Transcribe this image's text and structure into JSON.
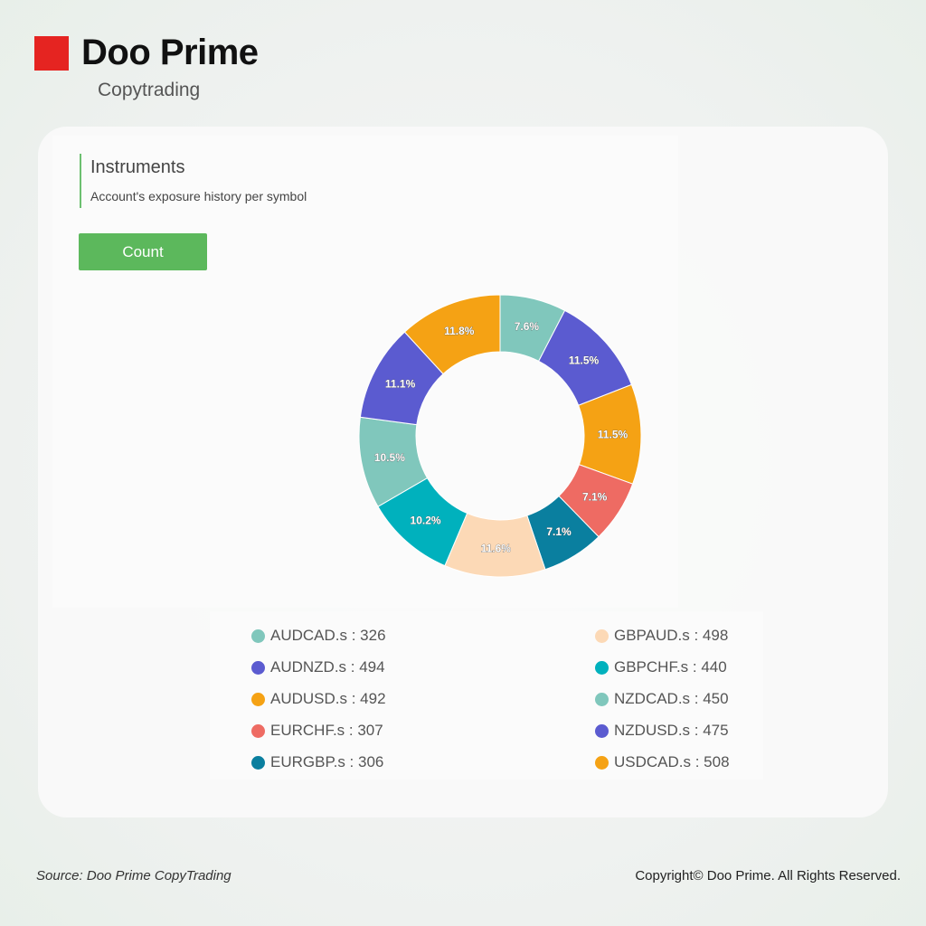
{
  "brand": {
    "name": "Doo Prime",
    "sub": "Copytrading",
    "color": "#e52421"
  },
  "header": {
    "title": "Instruments",
    "subtitle": "Account's exposure history per symbol"
  },
  "button": {
    "label": "Count",
    "color": "#5cb85c"
  },
  "chart_data": {
    "type": "pie",
    "donut": true,
    "categories": [
      "AUDCAD.s",
      "AUDNZD.s",
      "AUDUSD.s",
      "EURCHF.s",
      "EURGBP.s",
      "GBPAUD.s",
      "GBPCHF.s",
      "NZDCAD.s",
      "NZDUSD.s",
      "USDCAD.s"
    ],
    "values": [
      326,
      494,
      492,
      307,
      306,
      498,
      440,
      450,
      475,
      508
    ],
    "labels": [
      "7.6%",
      "11.5%",
      "11.5%",
      "7.1%",
      "7.1%",
      "11.6%",
      "10.2%",
      "10.5%",
      "11.1%",
      "11.8%"
    ],
    "colors": [
      "#80c7bc",
      "#5b5bd0",
      "#f5a214",
      "#ee6b63",
      "#0a7f9f",
      "#fcd9b6",
      "#00b1bd",
      "#80c7bc",
      "#5b5bd0",
      "#f5a214"
    ],
    "legend": "bottom"
  },
  "footer": {
    "source": "Source: Doo Prime CopyTrading",
    "copyright": "Copyright© Doo Prime. All Rights Reserved."
  }
}
